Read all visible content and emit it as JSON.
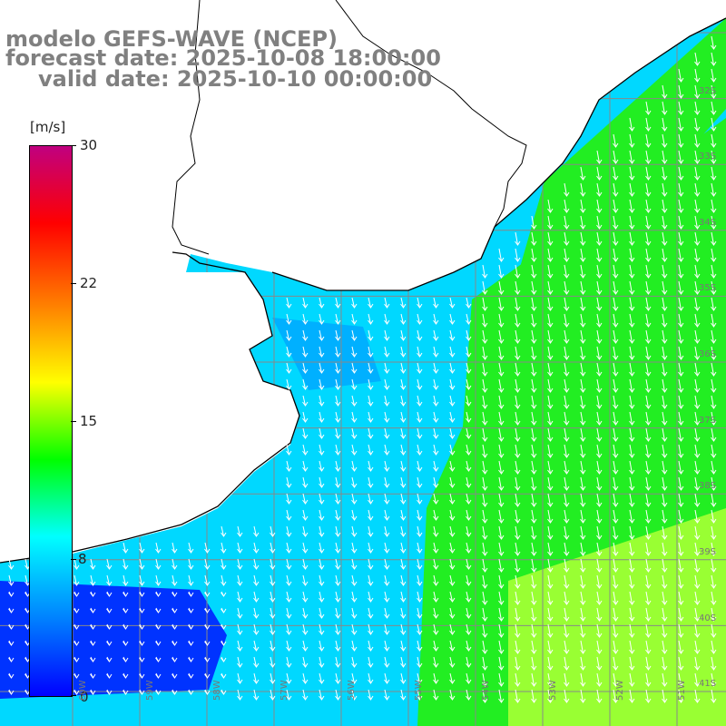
{
  "title": {
    "line1": "modelo GEFS-WAVE (NCEP)",
    "line2": "forecast date: 2025-10-08 18:00:00",
    "line3": "valid date: 2025-10-10 00:00:00"
  },
  "colorbar": {
    "unit": "[m/s]",
    "ticks": [
      "30",
      "22",
      "15",
      "8",
      "0"
    ],
    "tick_values": [
      30,
      22,
      15,
      8,
      0
    ],
    "min": 0,
    "max": 30,
    "colors": [
      "#0000ff",
      "#0080ff",
      "#00ffff",
      "#00ff00",
      "#ffff00",
      "#ff8000",
      "#ff0000",
      "#c00080"
    ]
  },
  "axes": {
    "lat_labels": [
      "32S",
      "33S",
      "34S",
      "35S",
      "36S",
      "37S",
      "38S",
      "39S",
      "40S",
      "41S"
    ],
    "lon_labels": [
      "60W",
      "59W",
      "58W",
      "57W",
      "56W",
      "55W",
      "54W",
      "53W",
      "52W",
      "51W"
    ]
  },
  "map": {
    "field": "wind speed",
    "arrows_direction": "mostly toward south / south-southeast",
    "ocean_palette": {
      "weak": "#0033ff",
      "moderate": "#00d8ff",
      "strong": "#22ee22",
      "strongest": "#99ff33"
    },
    "land_color": "#ffffff",
    "coast_color": "#000000",
    "grid_color": "#888888"
  }
}
